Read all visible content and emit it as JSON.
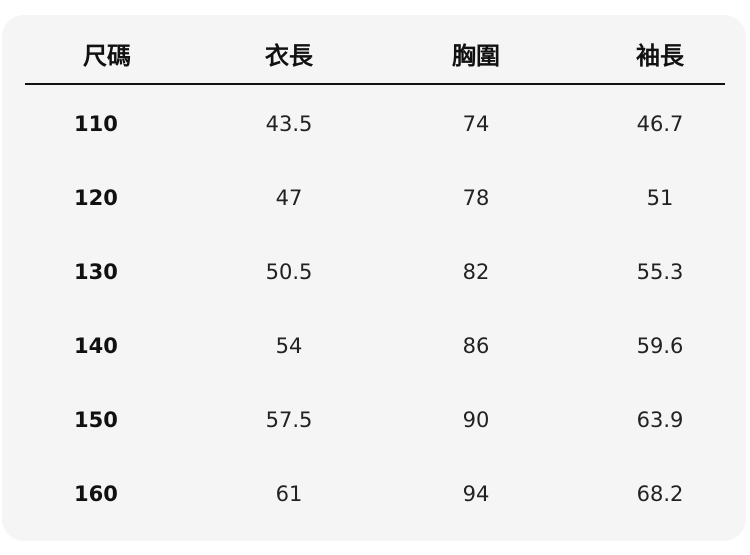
{
  "table": {
    "headers": [
      "尺碼",
      "衣長",
      "胸圍",
      "袖長"
    ],
    "rows": [
      [
        "110",
        "43.5",
        "74",
        "46.7"
      ],
      [
        "120",
        "47",
        "78",
        "51"
      ],
      [
        "130",
        "50.5",
        "82",
        "55.3"
      ],
      [
        "140",
        "54",
        "86",
        "59.6"
      ],
      [
        "150",
        "57.5",
        "90",
        "63.9"
      ],
      [
        "160",
        "61",
        "94",
        "68.2"
      ]
    ]
  }
}
